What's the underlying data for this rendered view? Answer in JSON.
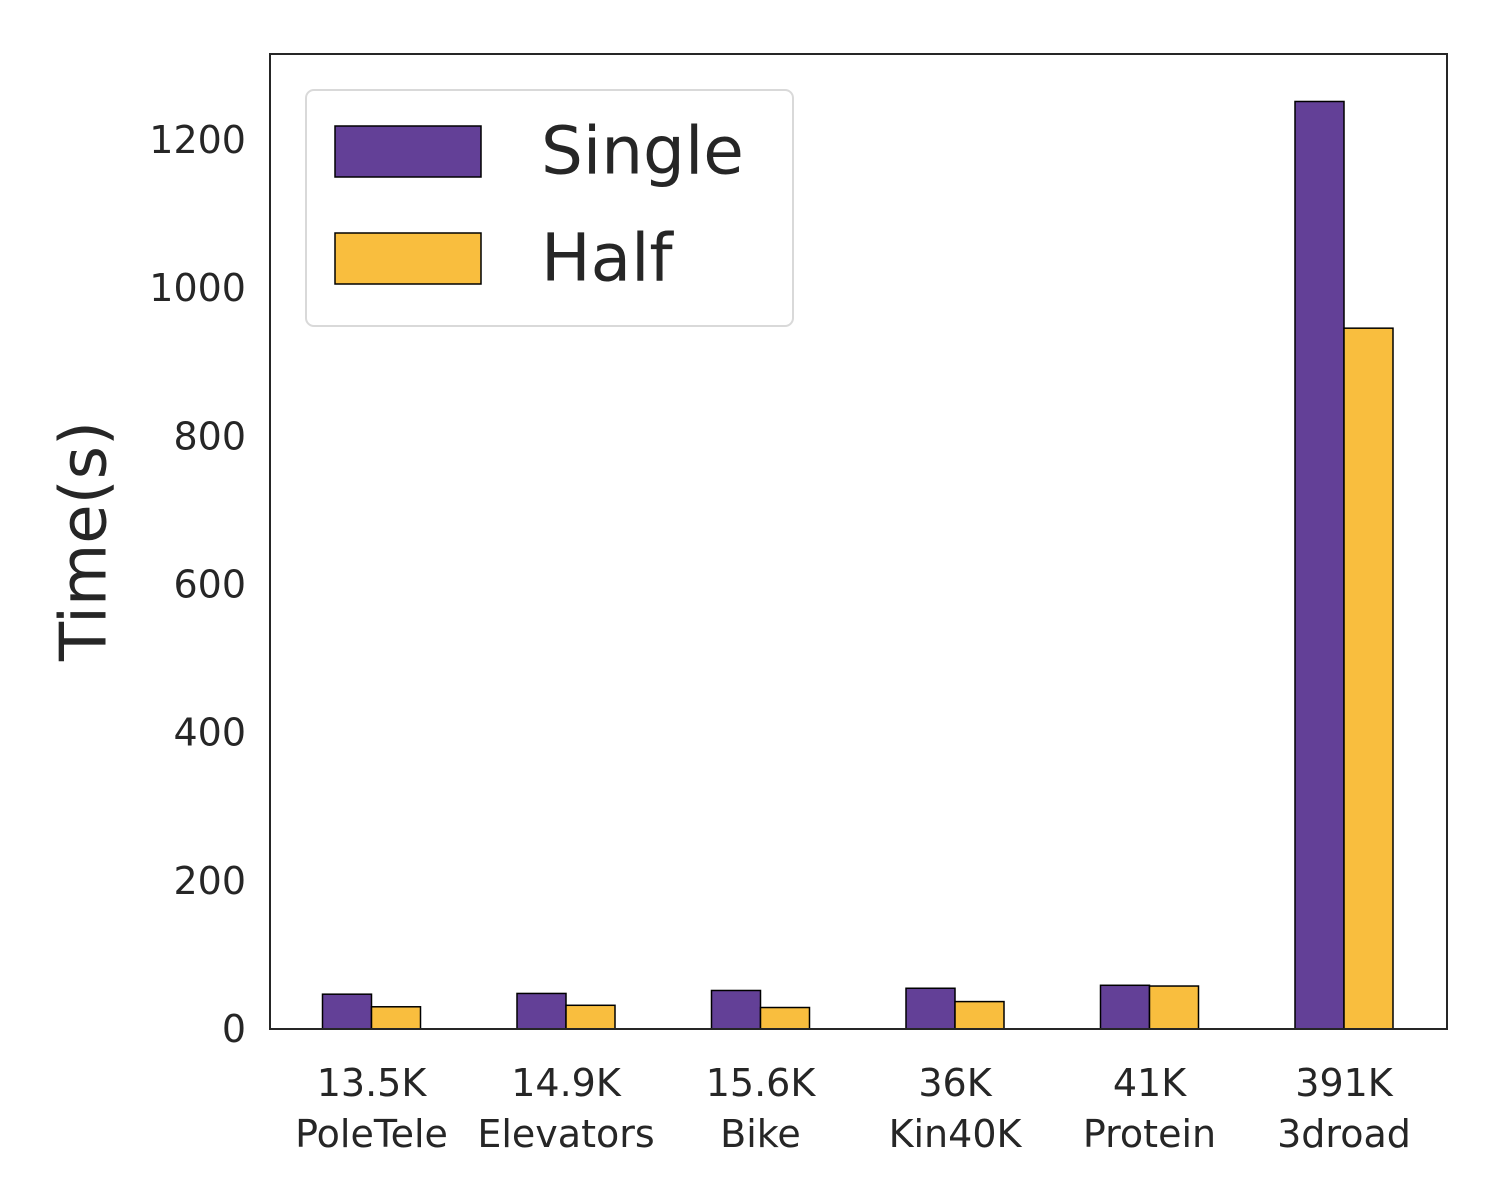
{
  "chart_data": {
    "type": "bar",
    "title": "",
    "xlabel": "",
    "ylabel": "Time(s)",
    "ylim": [
      0,
      1310
    ],
    "yticks": [
      0,
      200,
      400,
      600,
      800,
      1000,
      1200
    ],
    "grid": false,
    "legend_position": "top-left",
    "categories": [
      {
        "size": "13.5K",
        "name": "PoleTele"
      },
      {
        "size": "14.9K",
        "name": "Elevators"
      },
      {
        "size": "15.6K",
        "name": "Bike"
      },
      {
        "size": "36K",
        "name": "Kin40K"
      },
      {
        "size": "41K",
        "name": "Protein"
      },
      {
        "size": "391K",
        "name": "3droad"
      }
    ],
    "series": [
      {
        "name": "Single",
        "color": "#634097",
        "values": [
          47,
          48,
          52,
          55,
          59,
          1252
        ]
      },
      {
        "name": "Half",
        "color": "#f9be3e",
        "values": [
          30,
          32,
          29,
          37,
          58,
          946
        ]
      }
    ]
  }
}
